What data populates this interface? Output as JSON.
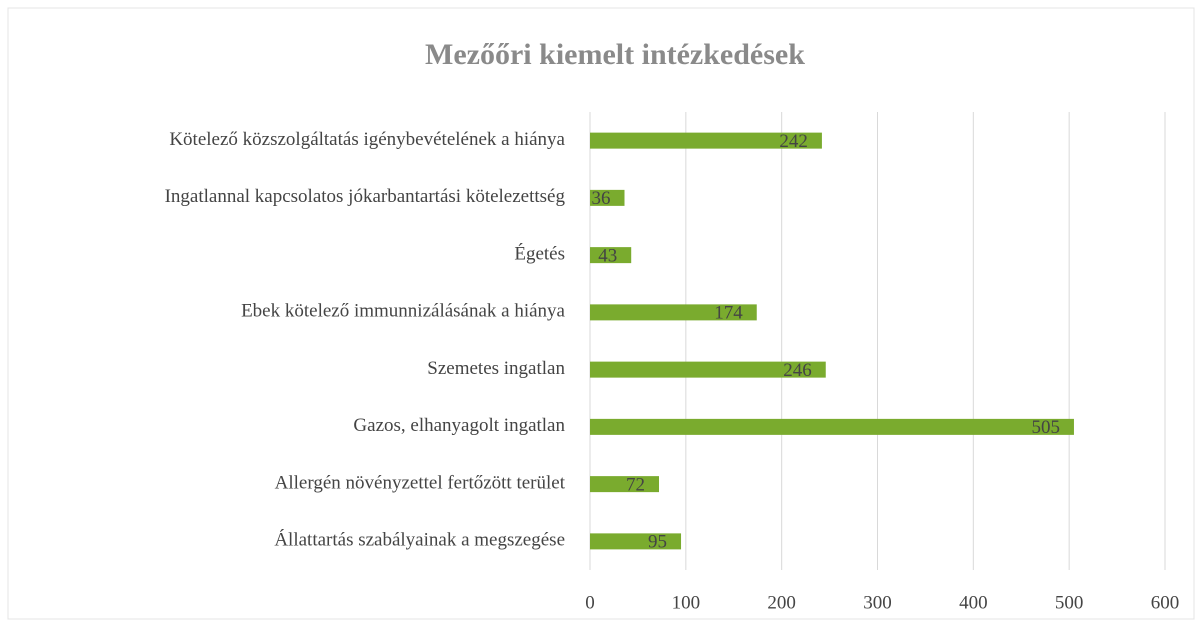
{
  "chart_data": {
    "type": "hbar",
    "title": "Mezőőri kiemelt intézkedések",
    "categories": [
      "Kötelező közszolgáltatás igénybevételének a hiánya",
      "Ingatlannal kapcsolatos jókarbantartási kötelezettség",
      "Égetés",
      "Ebek kötelező immunnizálásának a hiánya",
      "Szemetes ingatlan",
      "Gazos, elhanyagolt ingatlan",
      "Allergén növényzettel fertőzött terület",
      "Állattartás szabályainak a megszegése"
    ],
    "values": [
      242,
      36,
      43,
      174,
      246,
      505,
      72,
      95
    ],
    "color": "#7aab2e",
    "xlim": [
      0,
      600
    ],
    "xticks": [
      0,
      100,
      200,
      300,
      400,
      500,
      600
    ],
    "grid": true
  }
}
